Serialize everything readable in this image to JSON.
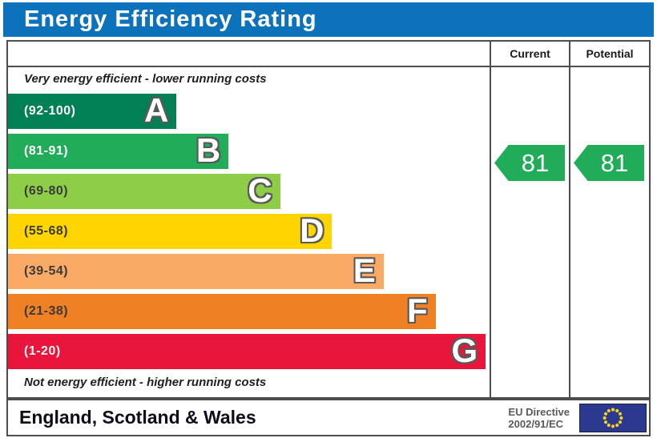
{
  "title": "Energy Efficiency Rating",
  "header": {
    "current": "Current",
    "potential": "Potential"
  },
  "notes": {
    "top": "Very energy efficient - lower running costs",
    "bottom": "Not energy efficient - higher running costs"
  },
  "bands": [
    {
      "letter": "A",
      "range": "(92-100)",
      "color": "#008054",
      "label_color": "#ffffff",
      "width_pct": 35
    },
    {
      "letter": "B",
      "range": "(81-91)",
      "color": "#21ac59",
      "label_color": "#ffffff",
      "width_pct": 45.8
    },
    {
      "letter": "C",
      "range": "(69-80)",
      "color": "#8dce46",
      "label_color": "#3a3a3a",
      "width_pct": 56.5
    },
    {
      "letter": "D",
      "range": "(55-68)",
      "color": "#ffd500",
      "label_color": "#3a3a3a",
      "width_pct": 67.3
    },
    {
      "letter": "E",
      "range": "(39-54)",
      "color": "#fbaa65",
      "label_color": "#3a3a3a",
      "width_pct": 78
    },
    {
      "letter": "F",
      "range": "(21-38)",
      "color": "#ef8023",
      "label_color": "#3a3a3a",
      "width_pct": 88.8
    },
    {
      "letter": "G",
      "range": "(1-20)",
      "color": "#e9153b",
      "label_color": "#f5f5f5",
      "width_pct": 99.2
    }
  ],
  "ratings": {
    "current_value": "81",
    "potential_value": "81",
    "arrow_color": "#21ac59"
  },
  "footer": {
    "region": "England, Scotland & Wales",
    "directive_line1": "EU Directive",
    "directive_line2": "2002/91/EC"
  },
  "colors": {
    "title_bg": "#0c72bc",
    "border": "#4d4d4d",
    "flag_bg": "#2b3990",
    "flag_star": "#f7d117"
  },
  "chart_data": {
    "type": "bar",
    "title": "Energy Efficiency Rating",
    "orientation": "horizontal",
    "categories": [
      "A",
      "B",
      "C",
      "D",
      "E",
      "F",
      "G"
    ],
    "band_ranges": [
      "92-100",
      "81-91",
      "69-80",
      "55-68",
      "39-54",
      "21-38",
      "1-20"
    ],
    "band_colors": [
      "#008054",
      "#21ac59",
      "#8dce46",
      "#ffd500",
      "#fbaa65",
      "#ef8023",
      "#e9153b"
    ],
    "bar_lengths_relative": [
      0.35,
      0.46,
      0.57,
      0.67,
      0.78,
      0.89,
      0.99
    ],
    "series": [
      {
        "name": "Current",
        "values": [
          81
        ],
        "band": "B"
      },
      {
        "name": "Potential",
        "values": [
          81
        ],
        "band": "B"
      }
    ],
    "top_annotation": "Very energy efficient - lower running costs",
    "bottom_annotation": "Not energy efficient - higher running costs",
    "footer_left": "England, Scotland & Wales",
    "footer_right": "EU Directive 2002/91/EC"
  }
}
